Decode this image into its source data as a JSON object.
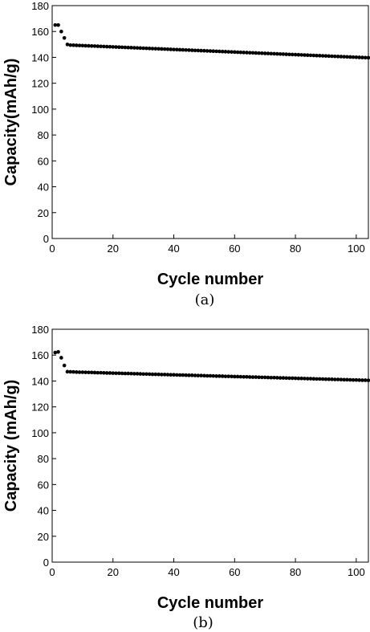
{
  "chart_data": [
    {
      "type": "scatter",
      "panel_label": "(a)",
      "xlabel": "Cycle number",
      "ylabel": "Capacity(mAh/g)",
      "xlim": [
        0,
        104
      ],
      "ylim": [
        0,
        180
      ],
      "xticks": [
        "0",
        "20",
        "40",
        "60",
        "80",
        "100"
      ],
      "yticks": [
        "0",
        "20",
        "40",
        "60",
        "80",
        "100",
        "120",
        "140",
        "160",
        "180"
      ],
      "grid": false,
      "series": [
        {
          "x": [
            1,
            2,
            3,
            4,
            5,
            6,
            7,
            8,
            9,
            10,
            11,
            12,
            13,
            14,
            15,
            16,
            17,
            18,
            19,
            20,
            21,
            22,
            23,
            24,
            25,
            26,
            27,
            28,
            29,
            30,
            31,
            32,
            33,
            34,
            35,
            36,
            37,
            38,
            39,
            40,
            41,
            42,
            43,
            44,
            45,
            46,
            47,
            48,
            49,
            50,
            51,
            52,
            53,
            54,
            55,
            56,
            57,
            58,
            59,
            60,
            61,
            62,
            63,
            64,
            65,
            66,
            67,
            68,
            69,
            70,
            71,
            72,
            73,
            74,
            75,
            76,
            77,
            78,
            79,
            80,
            81,
            82,
            83,
            84,
            85,
            86,
            87,
            88,
            89,
            90,
            91,
            92,
            93,
            94,
            95,
            96,
            97,
            98,
            99,
            100,
            101,
            102,
            103,
            104
          ],
          "y": [
            165,
            165,
            160,
            155,
            150,
            149.5,
            149.4,
            149.3,
            149.2,
            149.1,
            149,
            148.9,
            148.8,
            148.7,
            148.6,
            148.5,
            148.4,
            148.3,
            148.2,
            148.1,
            148,
            147.9,
            147.8,
            147.7,
            147.6,
            147.5,
            147.4,
            147.3,
            147.2,
            147.1,
            147,
            146.9,
            146.8,
            146.7,
            146.6,
            146.5,
            146.4,
            146.3,
            146.2,
            146.1,
            146,
            145.9,
            145.8,
            145.7,
            145.6,
            145.5,
            145.4,
            145.3,
            145.2,
            145.1,
            145,
            144.9,
            144.8,
            144.7,
            144.6,
            144.5,
            144.4,
            144.3,
            144.2,
            144.1,
            144,
            143.9,
            143.8,
            143.7,
            143.6,
            143.5,
            143.4,
            143.3,
            143.2,
            143.1,
            143,
            142.9,
            142.8,
            142.7,
            142.6,
            142.5,
            142.4,
            142.3,
            142.2,
            142.1,
            142,
            141.9,
            141.8,
            141.7,
            141.6,
            141.5,
            141.4,
            141.3,
            141.2,
            141.1,
            141,
            140.9,
            140.8,
            140.7,
            140.6,
            140.5,
            140.4,
            140.3,
            140.2,
            140.1,
            140,
            139.9,
            139.8,
            139.7
          ]
        }
      ]
    },
    {
      "type": "scatter",
      "panel_label": "(b)",
      "xlabel": "Cycle number",
      "ylabel": "Capacity (mAh/g)",
      "xlim": [
        0,
        104
      ],
      "ylim": [
        0,
        180
      ],
      "xticks": [
        "0",
        "20",
        "40",
        "60",
        "80",
        "100"
      ],
      "yticks": [
        "0",
        "20",
        "40",
        "60",
        "80",
        "100",
        "120",
        "140",
        "160",
        "180"
      ],
      "grid": false,
      "series": [
        {
          "x": [
            1,
            2,
            3,
            4,
            5,
            6,
            7,
            8,
            9,
            10,
            11,
            12,
            13,
            14,
            15,
            16,
            17,
            18,
            19,
            20,
            21,
            22,
            23,
            24,
            25,
            26,
            27,
            28,
            29,
            30,
            31,
            32,
            33,
            34,
            35,
            36,
            37,
            38,
            39,
            40,
            41,
            42,
            43,
            44,
            45,
            46,
            47,
            48,
            49,
            50,
            51,
            52,
            53,
            54,
            55,
            56,
            57,
            58,
            59,
            60,
            61,
            62,
            63,
            64,
            65,
            66,
            67,
            68,
            69,
            70,
            71,
            72,
            73,
            74,
            75,
            76,
            77,
            78,
            79,
            80,
            81,
            82,
            83,
            84,
            85,
            86,
            87,
            88,
            89,
            90,
            91,
            92,
            93,
            94,
            95,
            96,
            97,
            98,
            99,
            100,
            101,
            102,
            103,
            104
          ],
          "y": [
            162,
            162.5,
            158,
            152,
            147.2,
            147.1,
            147,
            146.9,
            146.8,
            146.8,
            146.7,
            146.6,
            146.6,
            146.5,
            146.4,
            146.4,
            146.3,
            146.2,
            146.2,
            146.1,
            146,
            146,
            145.9,
            145.8,
            145.8,
            145.7,
            145.6,
            145.6,
            145.5,
            145.4,
            145.4,
            145.3,
            145.2,
            145.2,
            145.1,
            145,
            145,
            144.9,
            144.8,
            144.8,
            144.7,
            144.6,
            144.6,
            144.5,
            144.4,
            144.4,
            144.3,
            144.2,
            144.2,
            144.1,
            144,
            144,
            143.9,
            143.8,
            143.8,
            143.7,
            143.6,
            143.6,
            143.5,
            143.4,
            143.4,
            143.3,
            143.2,
            143.2,
            143.1,
            143,
            143,
            142.9,
            142.8,
            142.8,
            142.7,
            142.6,
            142.6,
            142.5,
            142.4,
            142.4,
            142.3,
            142.2,
            142.2,
            142.1,
            142,
            142,
            141.9,
            141.8,
            141.8,
            141.7,
            141.6,
            141.6,
            141.5,
            141.4,
            141.4,
            141.3,
            141.2,
            141.2,
            141.1,
            141,
            141,
            140.9,
            140.8,
            140.8,
            140.7,
            140.6,
            140.6,
            140.5
          ]
        }
      ]
    }
  ]
}
